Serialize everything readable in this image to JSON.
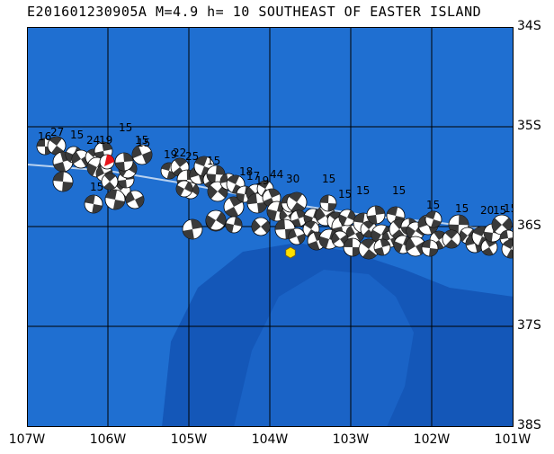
{
  "title": "E201601230905A M=4.9 h= 10 SOUTHEAST OF EASTER ISLAND",
  "lat_labels": [
    "34S",
    "35S",
    "36S",
    "37S",
    "38S"
  ],
  "lon_labels": [
    "107W",
    "106W",
    "105W",
    "104W",
    "103W",
    "102W",
    "101W"
  ],
  "colors": {
    "deep_ocean": "#1f6fd1",
    "shallow": "#3b87e0",
    "trench": "#1457b8",
    "grid": "#000000",
    "beachball_fill": "#ffffff",
    "beachball_quadrant": "#3a3a3a",
    "current_event": "#e8141a",
    "epicenter_marker": "#ffe000",
    "ridge": "#b9d2f0"
  },
  "icons": {
    "epicenter": "hexagon-icon",
    "mechanism": "beachball-icon"
  },
  "depth_labels": [
    "16",
    "27",
    "15",
    "24",
    "19",
    "15",
    "15",
    "15",
    "15",
    "19",
    "22",
    "25",
    "15",
    "18",
    "17",
    "19",
    "44",
    "30",
    "15",
    "15",
    "15",
    "15",
    "15",
    "15",
    "20",
    "15",
    "15"
  ]
}
